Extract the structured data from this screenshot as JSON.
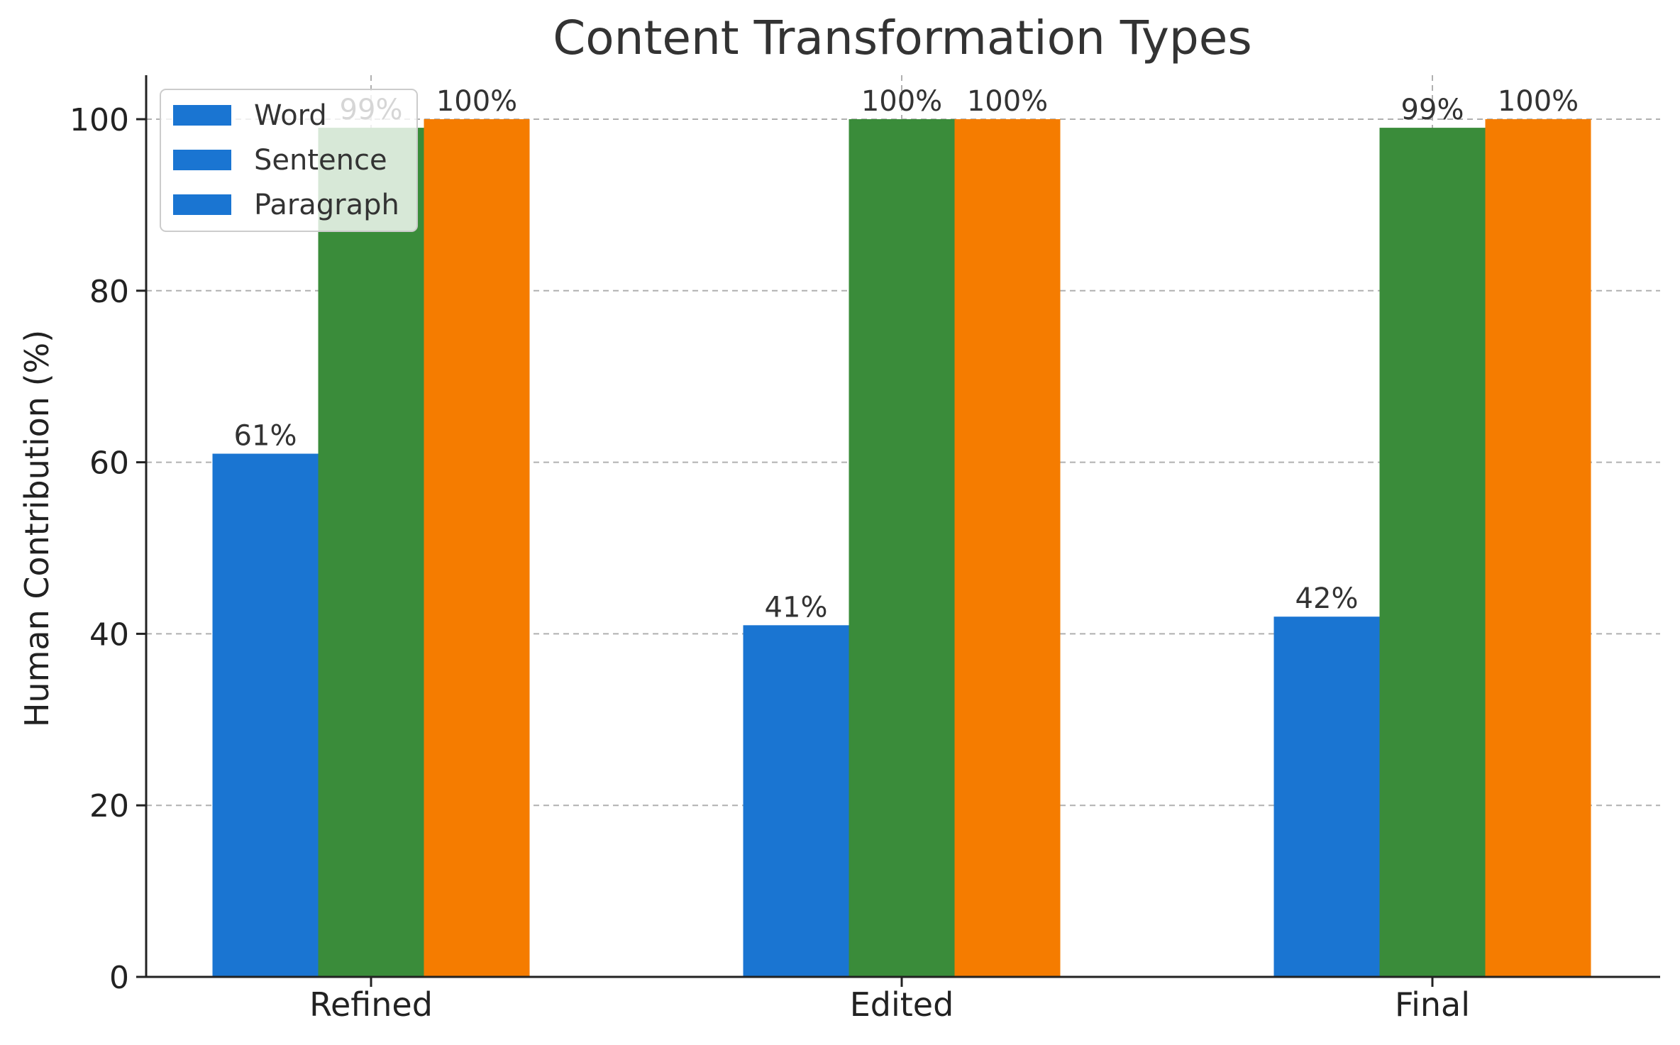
{
  "chart_data": {
    "type": "bar",
    "title": "Content Transformation Types",
    "xlabel": "",
    "ylabel": "Human Contribution (%)",
    "categories": [
      "Refined",
      "Edited",
      "Final"
    ],
    "series": [
      {
        "name": "Word",
        "values": [
          61,
          41,
          42
        ],
        "labels": [
          "61%",
          "41%",
          "42%"
        ],
        "color": "#1a75d2"
      },
      {
        "name": "Sentence",
        "values": [
          99,
          100,
          99
        ],
        "labels": [
          "99%",
          "100%",
          "99%"
        ],
        "color": "#3a8c3a"
      },
      {
        "name": "Paragraph",
        "values": [
          100,
          100,
          100
        ],
        "labels": [
          "100%",
          "100%",
          "100%"
        ],
        "color": "#f57c00"
      }
    ],
    "legend_colors": [
      "#1a75d2",
      "#1a75d2",
      "#1a75d2"
    ],
    "ylim": [
      0,
      105
    ],
    "yticks": [
      0,
      20,
      40,
      60,
      80,
      100
    ],
    "grid": true,
    "legend_position": "top-left"
  }
}
